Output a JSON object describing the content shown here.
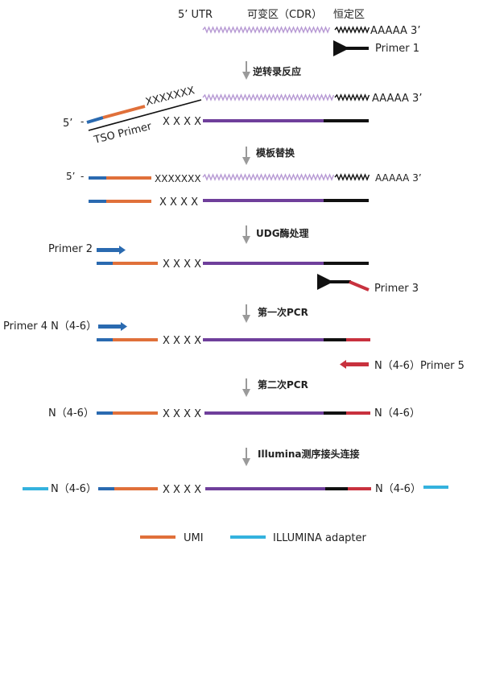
{
  "colors": {
    "blue": "#2a6ab0",
    "orange": "#e0703a",
    "purple": "#6f3f9b",
    "black": "#111111",
    "red": "#c8313e",
    "cyan": "#34b2de",
    "light_purple": "#b79ad4",
    "arrow_gray": "#9a9a9a"
  },
  "top": {
    "five_prime_utr": "5’ UTR",
    "variable_region": "可变区（CDR）",
    "constant_region": "恒定区",
    "poly_a": "AAAAA 3’",
    "primer1": "Primer 1"
  },
  "steps": [
    "逆转录反应",
    "模板替换",
    "UDG酶处理",
    "第一次PCR",
    "第二次PCR",
    "Illumina测序接头连接"
  ],
  "rt": {
    "five_prime": "5’",
    "x_seq": "XXXXXXX",
    "x_short": "X X X X",
    "tso_primer": "TSO Primer",
    "poly_a": "AAAAA 3’"
  },
  "template_switch": {
    "five_prime": "5’",
    "x_seq": "XXXXXXX",
    "x_short": "X X X X",
    "poly_a": "AAAAA 3’"
  },
  "udg": {
    "primer2": "Primer 2",
    "x_short": "X X X X",
    "primer3": "Primer 3"
  },
  "pcr1": {
    "primer4": "Primer 4 N（4-6）",
    "x_short": "X X X X",
    "primer5": "N（4-6）Primer 5"
  },
  "pcr2": {
    "n_left": "N（4-6）",
    "x_short": "X X X X",
    "n_right": "N（4-6）"
  },
  "illumina": {
    "n_left": "N（4-6）",
    "x_short": "X X X X",
    "n_right": "N（4-6）"
  },
  "legend": {
    "umi": "UMI",
    "adapter": "ILLUMINA adapter"
  }
}
